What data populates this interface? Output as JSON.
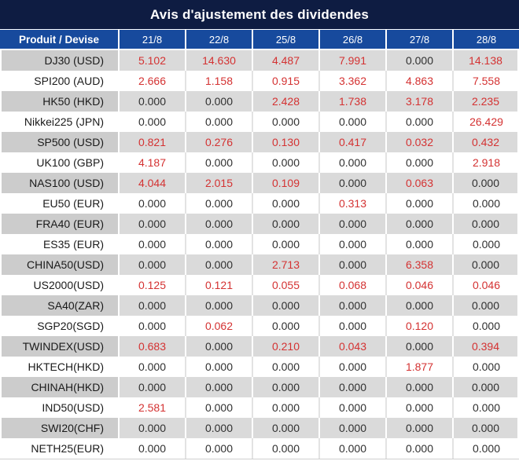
{
  "title": "Avis d'ajustement des dividendes",
  "table": {
    "header": {
      "product_label": "Produit / Devise",
      "dates": [
        "21/8",
        "22/8",
        "25/8",
        "26/8",
        "27/8",
        "28/8"
      ]
    },
    "rows": [
      {
        "product": "DJ30 (USD)",
        "values": [
          "5.102",
          "14.630",
          "4.487",
          "7.991",
          "0.000",
          "14.138"
        ]
      },
      {
        "product": "SPI200 (AUD)",
        "values": [
          "2.666",
          "1.158",
          "0.915",
          "3.362",
          "4.863",
          "7.558"
        ]
      },
      {
        "product": "HK50 (HKD)",
        "values": [
          "0.000",
          "0.000",
          "2.428",
          "1.738",
          "3.178",
          "2.235"
        ]
      },
      {
        "product": "Nikkei225 (JPN)",
        "values": [
          "0.000",
          "0.000",
          "0.000",
          "0.000",
          "0.000",
          "26.429"
        ]
      },
      {
        "product": "SP500 (USD)",
        "values": [
          "0.821",
          "0.276",
          "0.130",
          "0.417",
          "0.032",
          "0.432"
        ]
      },
      {
        "product": "UK100 (GBP)",
        "values": [
          "4.187",
          "0.000",
          "0.000",
          "0.000",
          "0.000",
          "2.918"
        ]
      },
      {
        "product": "NAS100 (USD)",
        "values": [
          "4.044",
          "2.015",
          "0.109",
          "0.000",
          "0.063",
          "0.000"
        ]
      },
      {
        "product": "EU50 (EUR)",
        "values": [
          "0.000",
          "0.000",
          "0.000",
          "0.313",
          "0.000",
          "0.000"
        ]
      },
      {
        "product": "FRA40 (EUR)",
        "values": [
          "0.000",
          "0.000",
          "0.000",
          "0.000",
          "0.000",
          "0.000"
        ]
      },
      {
        "product": "ES35 (EUR)",
        "values": [
          "0.000",
          "0.000",
          "0.000",
          "0.000",
          "0.000",
          "0.000"
        ]
      },
      {
        "product": "CHINA50(USD)",
        "values": [
          "0.000",
          "0.000",
          "2.713",
          "0.000",
          "6.358",
          "0.000"
        ]
      },
      {
        "product": "US2000(USD)",
        "values": [
          "0.125",
          "0.121",
          "0.055",
          "0.068",
          "0.046",
          "0.046"
        ]
      },
      {
        "product": "SA40(ZAR)",
        "values": [
          "0.000",
          "0.000",
          "0.000",
          "0.000",
          "0.000",
          "0.000"
        ]
      },
      {
        "product": "SGP20(SGD)",
        "values": [
          "0.000",
          "0.062",
          "0.000",
          "0.000",
          "0.120",
          "0.000"
        ]
      },
      {
        "product": "TWINDEX(USD)",
        "values": [
          "0.683",
          "0.000",
          "0.210",
          "0.043",
          "0.000",
          "0.394"
        ]
      },
      {
        "product": "HKTECH(HKD)",
        "values": [
          "0.000",
          "0.000",
          "0.000",
          "0.000",
          "1.877",
          "0.000"
        ]
      },
      {
        "product": "CHINAH(HKD)",
        "values": [
          "0.000",
          "0.000",
          "0.000",
          "0.000",
          "0.000",
          "0.000"
        ]
      },
      {
        "product": "IND50(USD)",
        "values": [
          "2.581",
          "0.000",
          "0.000",
          "0.000",
          "0.000",
          "0.000"
        ]
      },
      {
        "product": "SWI20(CHF)",
        "values": [
          "0.000",
          "0.000",
          "0.000",
          "0.000",
          "0.000",
          "0.000"
        ]
      },
      {
        "product": "NETH25(EUR)",
        "values": [
          "0.000",
          "0.000",
          "0.000",
          "0.000",
          "0.000",
          "0.000"
        ]
      }
    ]
  },
  "colors": {
    "title_bg": "#0e1c42",
    "header_bg": "#174a9d",
    "stripe_row_bg": "#dadada",
    "stripe_label_bg": "#cccccc",
    "nonzero_value": "#d43232",
    "zero_value": "#303030"
  }
}
